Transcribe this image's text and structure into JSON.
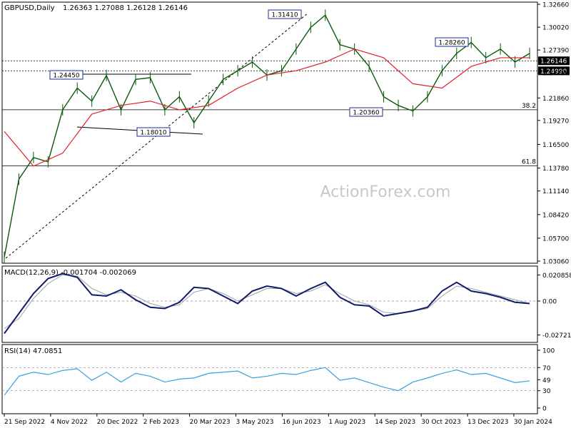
{
  "header": {
    "symbol": "GBPUSD,Daily",
    "ohlc": "1.26363 1.27088 1.26128 1.26146",
    "macd_label": "MACD(12,26,9) -0.001704 -0.002069",
    "rsi_label": "RSI(14) 47.0851"
  },
  "watermark": "ActionForex.com",
  "colors": {
    "price": "#0a5a0a",
    "ma": "#e0202a",
    "macd": "#101c6e",
    "signal": "#a0a0a0",
    "rsi": "#3aa0dc",
    "level_box": "#1c2c8c",
    "grid_line": "#000000"
  },
  "chart_data": [
    {
      "type": "line",
      "title": "",
      "price_ticks": [
        "1.32660",
        "1.30020",
        "1.27390",
        "1.24750",
        "1.21860",
        "1.19270",
        "1.16500",
        "1.13780",
        "1.11140",
        "1.08420",
        "1.05700",
        "1.03060"
      ],
      "ylim": [
        1.0306,
        1.3266
      ],
      "x_ticks": [
        "21 Sep 2022",
        "4 Nov 2022",
        "20 Dec 2022",
        "2 Feb 2023",
        "20 Mar 2023",
        "3 May 2023",
        "16 Jun 2023",
        "1 Aug 2023",
        "14 Sep 2023",
        "30 Oct 2023",
        "13 Dec 2023",
        "30 Jan 2024"
      ],
      "series": [
        {
          "name": "",
          "x": [
            0,
            4,
            8,
            12,
            16,
            20,
            24,
            28,
            32,
            36,
            40,
            44,
            48,
            52,
            56,
            60,
            64,
            68,
            72,
            76,
            80,
            84,
            88,
            92,
            96,
            100,
            104,
            108,
            112,
            116,
            120,
            124,
            128,
            132,
            136,
            140,
            144
          ],
          "values": [
            1.035,
            1.125,
            1.15,
            1.145,
            1.205,
            1.23,
            1.215,
            1.2445,
            1.205,
            1.24,
            1.242,
            1.205,
            1.22,
            1.19,
            1.215,
            1.24,
            1.25,
            1.26,
            1.245,
            1.25,
            1.275,
            1.3,
            1.3141,
            1.28,
            1.275,
            1.255,
            1.22,
            1.21,
            1.2036,
            1.22,
            1.25,
            1.27,
            1.2826,
            1.265,
            1.275,
            1.26,
            1.27
          ]
        },
        {
          "name": "",
          "x": [
            0,
            8,
            16,
            24,
            32,
            40,
            48,
            56,
            64,
            72,
            80,
            88,
            96,
            104,
            112,
            120,
            128,
            136,
            144
          ],
          "values": [
            1.18,
            1.14,
            1.155,
            1.2,
            1.21,
            1.215,
            1.205,
            1.21,
            1.23,
            1.245,
            1.25,
            1.26,
            1.275,
            1.265,
            1.235,
            1.23,
            1.255,
            1.265,
            1.265
          ]
        }
      ],
      "levels": [
        {
          "label": "1.31410"
        },
        {
          "label": "1.28260"
        },
        {
          "label": "1.24450"
        },
        {
          "label": "1.20360"
        },
        {
          "label": "1.18010"
        },
        {
          "label": "1.26146"
        },
        {
          "label": "1.24990"
        }
      ],
      "fib": [
        {
          "label": "38.2",
          "value": 1.205
        },
        {
          "label": "61.8",
          "value": 1.1405
        }
      ]
    },
    {
      "type": "line",
      "title": "",
      "ticks": [
        "0.020858",
        "0.00",
        "-0.027213"
      ],
      "ylim": [
        -0.032,
        0.024
      ],
      "series": [
        {
          "name": "",
          "x": [
            0,
            4,
            8,
            12,
            16,
            20,
            24,
            28,
            32,
            36,
            40,
            44,
            48,
            52,
            56,
            60,
            64,
            68,
            72,
            76,
            80,
            84,
            88,
            92,
            96,
            100,
            104,
            108,
            112,
            116,
            120,
            124,
            128,
            132,
            136,
            140,
            144
          ],
          "values": [
            -0.026,
            -0.01,
            0.006,
            0.018,
            0.022,
            0.019,
            0.005,
            0.004,
            0.009,
            0.001,
            -0.005,
            -0.006,
            -0.001,
            0.011,
            0.01,
            0.004,
            -0.002,
            0.008,
            0.012,
            0.01,
            0.004,
            0.01,
            0.015,
            0.003,
            -0.003,
            -0.004,
            -0.012,
            -0.01,
            -0.008,
            -0.005,
            0.008,
            0.015,
            0.008,
            0.006,
            0.003,
            -0.001,
            -0.002
          ]
        },
        {
          "name": "",
          "x": [
            0,
            4,
            8,
            12,
            16,
            20,
            24,
            28,
            32,
            36,
            40,
            44,
            48,
            52,
            56,
            60,
            64,
            68,
            72,
            76,
            80,
            84,
            88,
            92,
            96,
            100,
            104,
            108,
            112,
            116,
            120,
            124,
            128,
            132,
            136,
            140,
            144
          ],
          "values": [
            -0.022,
            -0.014,
            0.002,
            0.014,
            0.021,
            0.02,
            0.01,
            0.005,
            0.007,
            0.004,
            -0.002,
            -0.005,
            -0.003,
            0.007,
            0.01,
            0.006,
            0.0,
            0.005,
            0.01,
            0.01,
            0.006,
            0.008,
            0.013,
            0.006,
            0.0,
            -0.003,
            -0.009,
            -0.01,
            -0.008,
            -0.006,
            0.004,
            0.012,
            0.01,
            0.007,
            0.004,
            0.001,
            -0.002
          ]
        }
      ]
    },
    {
      "type": "line",
      "title": "",
      "ticks": [
        "100",
        "70",
        "49",
        "30",
        "0"
      ],
      "ylim": [
        0,
        100
      ],
      "series": [
        {
          "name": "",
          "x": [
            0,
            4,
            8,
            12,
            16,
            20,
            24,
            28,
            32,
            36,
            40,
            44,
            48,
            52,
            56,
            60,
            64,
            68,
            72,
            76,
            80,
            84,
            88,
            92,
            96,
            100,
            104,
            108,
            112,
            116,
            120,
            124,
            128,
            132,
            136,
            140,
            144
          ],
          "values": [
            22,
            55,
            62,
            58,
            65,
            68,
            48,
            62,
            45,
            60,
            55,
            45,
            50,
            52,
            60,
            62,
            64,
            52,
            55,
            60,
            58,
            65,
            70,
            48,
            52,
            44,
            36,
            30,
            45,
            52,
            60,
            66,
            58,
            60,
            52,
            44,
            47
          ]
        }
      ]
    }
  ]
}
